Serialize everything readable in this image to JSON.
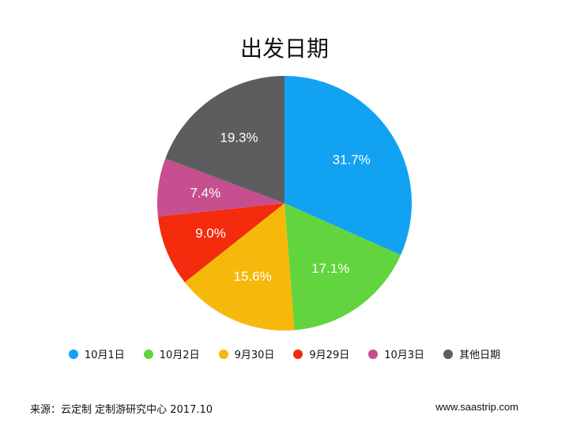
{
  "chart_data": {
    "type": "pie",
    "title": "出发日期",
    "series": [
      {
        "name": "10月1日",
        "value": 31.7,
        "label": "31.7%",
        "color": "#12a2f2"
      },
      {
        "name": "10月2日",
        "value": 17.1,
        "label": "17.1%",
        "color": "#62d43d"
      },
      {
        "name": "9月30日",
        "value": 15.6,
        "label": "15.6%",
        "color": "#f6b90b"
      },
      {
        "name": "9月29日",
        "value": 9.0,
        "label": "9.0%",
        "color": "#f42b0c"
      },
      {
        "name": "10月3日",
        "value": 7.4,
        "label": "7.4%",
        "color": "#c54f8f"
      },
      {
        "name": "其他日期",
        "value": 19.3,
        "label": "19.3%",
        "color": "#5d5d5f"
      }
    ],
    "legend_position": "bottom",
    "start": "12 o'clock",
    "direction": "clockwise"
  },
  "footer": {
    "source": "来源：云定制 定制游研究中心   2017.10",
    "website": "www.saastrip.com"
  }
}
